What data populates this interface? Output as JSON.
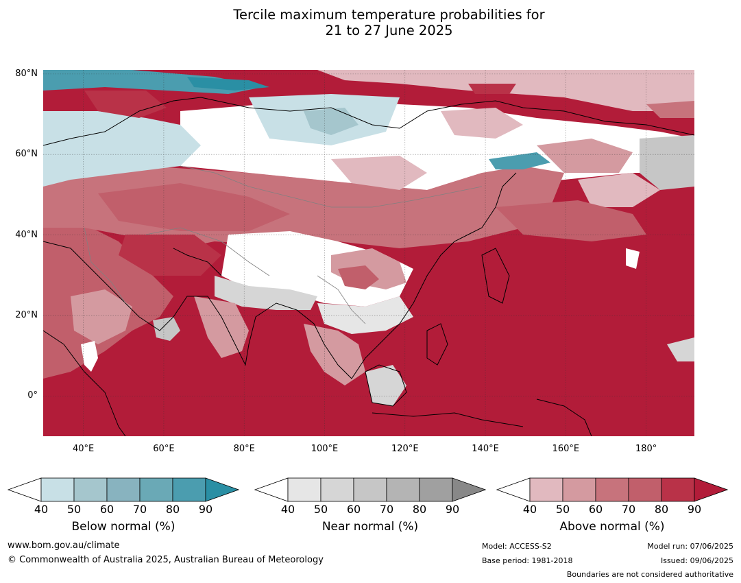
{
  "title": {
    "line1": "Tercile maximum temperature probabilities for",
    "line2": "21 to 27 June 2025"
  },
  "map": {
    "projection": "equirectangular",
    "lon_range": [
      30,
      192
    ],
    "lat_range": [
      -10,
      81
    ],
    "lat_labels": [
      "80°N",
      "60°N",
      "40°N",
      "20°N",
      "0°"
    ],
    "lat_values": [
      80,
      60,
      40,
      20,
      0
    ],
    "lon_labels": [
      "40°E",
      "60°E",
      "80°E",
      "100°E",
      "120°E",
      "140°E",
      "160°E",
      "180°"
    ],
    "lon_values": [
      40,
      60,
      80,
      100,
      120,
      140,
      160,
      180
    ],
    "grid": true
  },
  "colors": {
    "below": [
      "#c8e0e6",
      "#a5c6cd",
      "#88b3bf",
      "#6aa9b6",
      "#4b9daf",
      "#2a8fa4"
    ],
    "near": [
      "#e6e6e6",
      "#d6d6d6",
      "#c6c6c6",
      "#b4b4b4",
      "#a0a0a0",
      "#888888"
    ],
    "above": [
      "#e1b9bf",
      "#d49aa0",
      "#c7737c",
      "#c15f6b",
      "#b93248",
      "#b21c39"
    ]
  },
  "colorbars": [
    {
      "key": "below",
      "title": "Below normal (%)",
      "ticks": [
        "40",
        "50",
        "60",
        "70",
        "80",
        "90"
      ]
    },
    {
      "key": "near",
      "title": "Near normal (%)",
      "ticks": [
        "40",
        "50",
        "60",
        "70",
        "80",
        "90"
      ]
    },
    {
      "key": "above",
      "title": "Above normal (%)",
      "ticks": [
        "40",
        "50",
        "60",
        "70",
        "80",
        "90"
      ]
    }
  ],
  "footer": {
    "website": "www.bom.gov.au/climate",
    "copyright": "© Commonwealth of Australia 2025, Australian Bureau of Meteorology",
    "model": "Model: ACCESS-S2",
    "base_period": "Base period: 1981-2018",
    "model_run": "Model run: 07/06/2025",
    "issued": "Issued: 09/06/2025",
    "boundaries": "Boundaries are not considered authoritative"
  }
}
